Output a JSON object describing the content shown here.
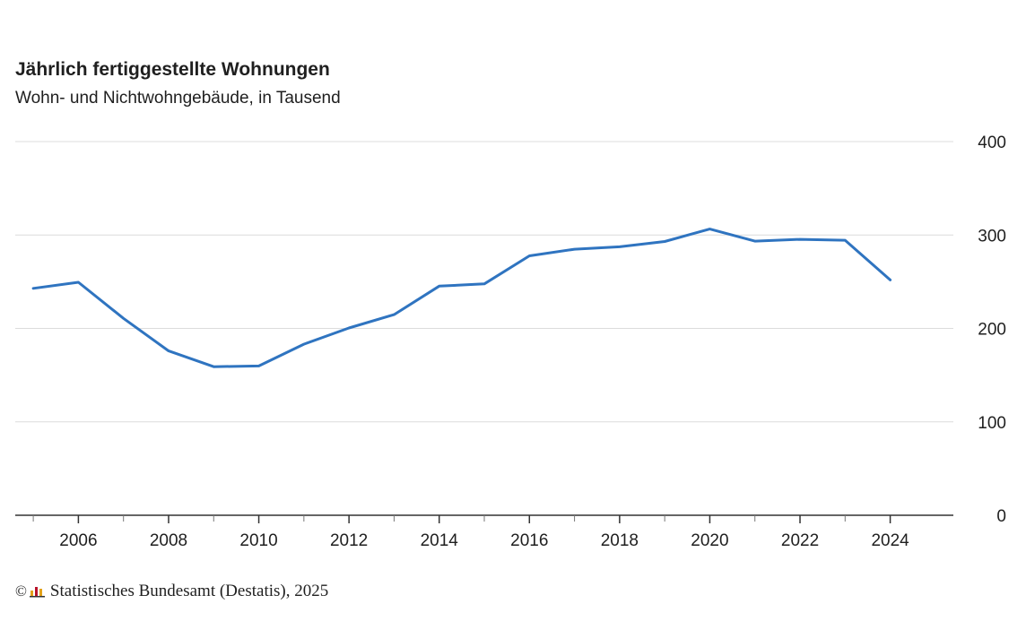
{
  "chart_data": {
    "type": "line",
    "title": "Jährlich fertiggestellte Wohnungen",
    "subtitle": "Wohn- und Nichtwohngebäude, in Tausend",
    "x": [
      2005,
      2006,
      2007,
      2008,
      2009,
      2010,
      2011,
      2012,
      2013,
      2014,
      2015,
      2016,
      2017,
      2018,
      2019,
      2020,
      2021,
      2022,
      2023,
      2024
    ],
    "series": [
      {
        "values": [
          242.9,
          249.4,
          210.7,
          175.9,
          159.0,
          159.8,
          183.1,
          200.5,
          214.8,
          245.3,
          247.7,
          277.7,
          284.8,
          287.4,
          293.0,
          306.4,
          293.4,
          295.3,
          294.4,
          251.9
        ],
        "color": "#2f74c0"
      }
    ],
    "xlim": [
      2004.6,
      2025.4
    ],
    "ylim": [
      0,
      400
    ],
    "yticks": [
      0,
      100,
      200,
      300,
      400
    ],
    "xticks_labeled": [
      2006,
      2008,
      2010,
      2012,
      2014,
      2016,
      2018,
      2020,
      2022,
      2024
    ],
    "xticks_minor": [
      2005,
      2007,
      2009,
      2011,
      2013,
      2015,
      2017,
      2019,
      2021,
      2023
    ],
    "grid": true,
    "y_axis_side": "right",
    "gridline_color": "#dcdcdc",
    "axis_color": "#333333"
  },
  "source": {
    "copyright_symbol": "©",
    "text": "Statistisches Bundesamt (Destatis), 2025",
    "logo_icon": "destatis-logo-icon"
  }
}
